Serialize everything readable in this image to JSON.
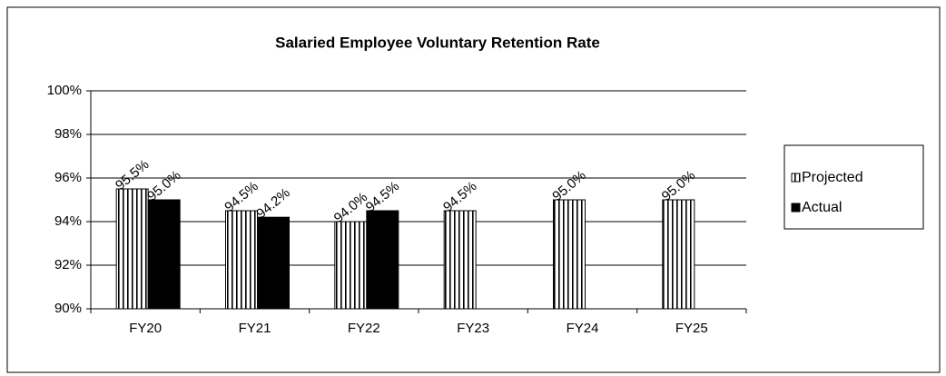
{
  "chart_data": {
    "type": "bar",
    "title": "Salaried Employee Voluntary Retention Rate",
    "categories": [
      "FY20",
      "FY21",
      "FY22",
      "FY23",
      "FY24",
      "FY25"
    ],
    "series": [
      {
        "name": "Projected",
        "color": "#000000",
        "pattern": "vertical-stripes",
        "values": [
          95.5,
          94.5,
          94.0,
          94.5,
          95.0,
          95.0
        ],
        "value_labels": [
          "95.5%",
          "94.5%",
          "94.0%",
          "94.5%",
          "95.0%",
          "95.0%"
        ]
      },
      {
        "name": "Actual",
        "color": "#000000",
        "values": [
          95.0,
          94.2,
          94.5,
          null,
          null,
          null
        ],
        "value_labels": [
          "95.0%",
          "94.2%",
          "94.5%",
          null,
          null,
          null
        ]
      }
    ],
    "ylim": [
      90,
      100
    ],
    "yticks": [
      {
        "value": 90,
        "label": "90%"
      },
      {
        "value": 92,
        "label": "92%"
      },
      {
        "value": 94,
        "label": "94%"
      },
      {
        "value": 96,
        "label": "96%"
      },
      {
        "value": 98,
        "label": "98%"
      },
      {
        "value": 100,
        "label": "100%"
      }
    ],
    "grid": true,
    "legend": "right"
  }
}
